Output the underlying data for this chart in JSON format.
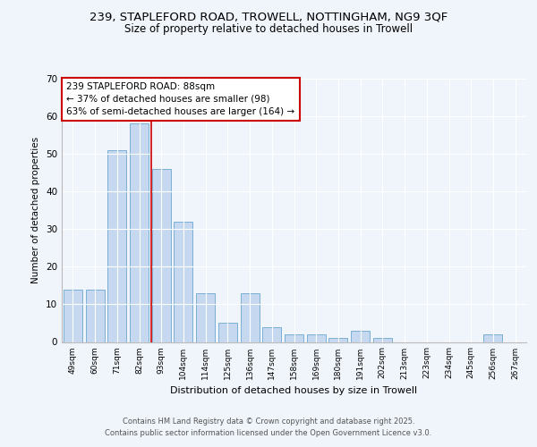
{
  "title1": "239, STAPLEFORD ROAD, TROWELL, NOTTINGHAM, NG9 3QF",
  "title2": "Size of property relative to detached houses in Trowell",
  "xlabel": "Distribution of detached houses by size in Trowell",
  "ylabel": "Number of detached properties",
  "categories": [
    "49sqm",
    "60sqm",
    "71sqm",
    "82sqm",
    "93sqm",
    "104sqm",
    "114sqm",
    "125sqm",
    "136sqm",
    "147sqm",
    "158sqm",
    "169sqm",
    "180sqm",
    "191sqm",
    "202sqm",
    "213sqm",
    "223sqm",
    "234sqm",
    "245sqm",
    "256sqm",
    "267sqm"
  ],
  "values": [
    14,
    14,
    51,
    58,
    46,
    32,
    13,
    5,
    13,
    4,
    2,
    2,
    1,
    3,
    1,
    0,
    0,
    0,
    0,
    2,
    0
  ],
  "bar_color": "#c5d8f0",
  "bar_edge_color": "#7bafd4",
  "red_line_x": 3.55,
  "annotation_text": "239 STAPLEFORD ROAD: 88sqm\n← 37% of detached houses are smaller (98)\n63% of semi-detached houses are larger (164) →",
  "annotation_box_color": "#ffffff",
  "annotation_box_edge": "#cc0000",
  "ylim": [
    0,
    70
  ],
  "yticks": [
    0,
    10,
    20,
    30,
    40,
    50,
    60,
    70
  ],
  "footer1": "Contains HM Land Registry data © Crown copyright and database right 2025.",
  "footer2": "Contains public sector information licensed under the Open Government Licence v3.0.",
  "bg_color": "#f0f4fb",
  "plot_bg_color": "#f0f4fb"
}
